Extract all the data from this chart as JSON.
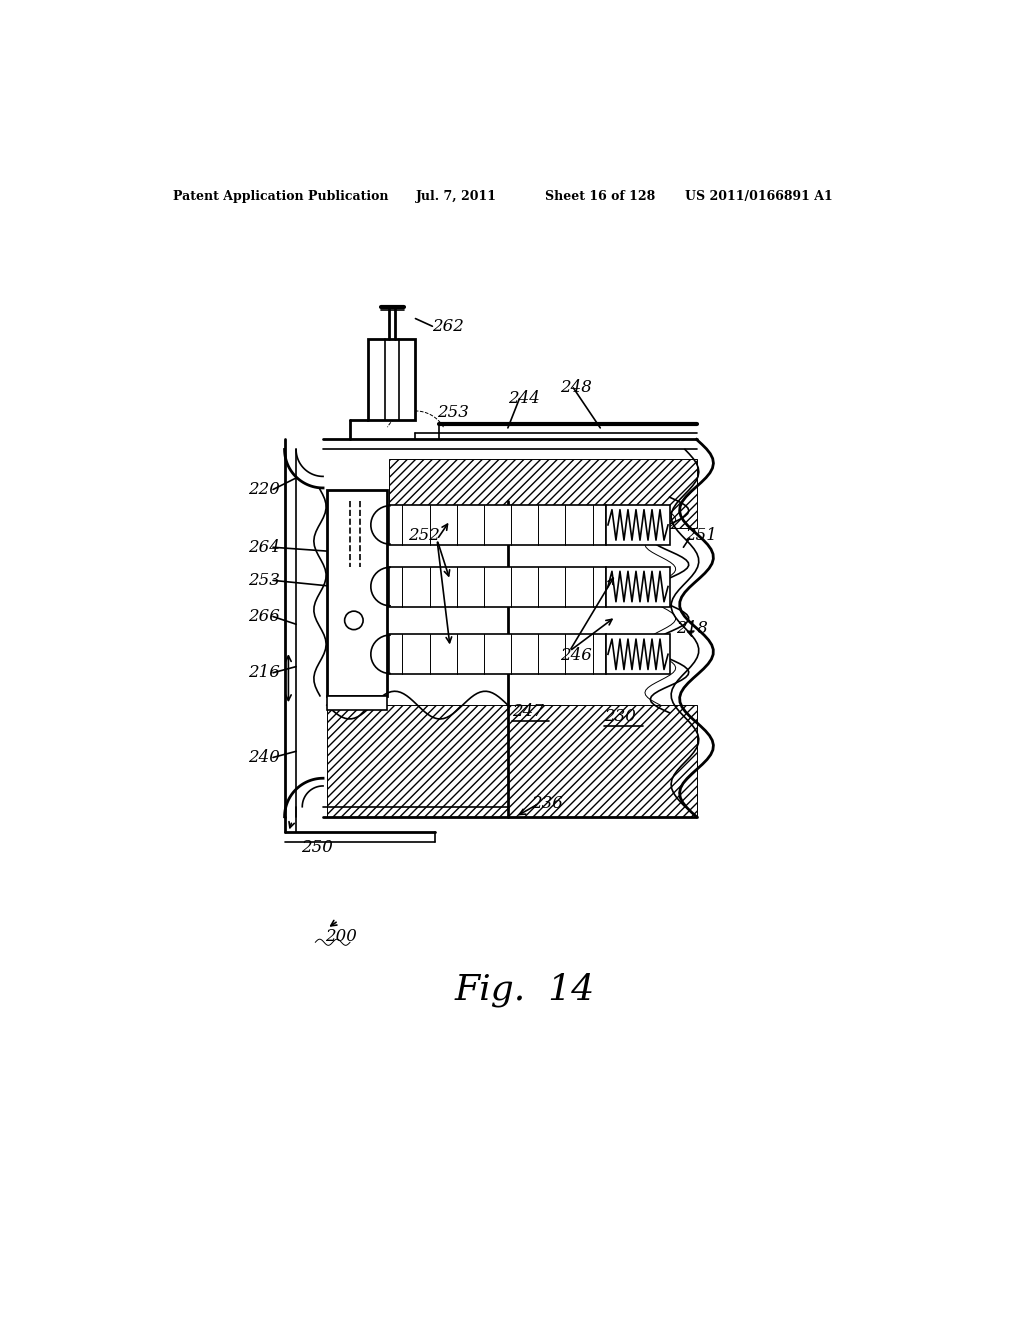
{
  "header_left": "Patent Application Publication",
  "header_mid": "Jul. 7, 2011",
  "header_sheet": "Sheet 16 of 128",
  "header_right": "US 2011/0166891 A1",
  "fig_label": "Fig.  14",
  "ref_number": "200",
  "bg_color": "#ffffff"
}
